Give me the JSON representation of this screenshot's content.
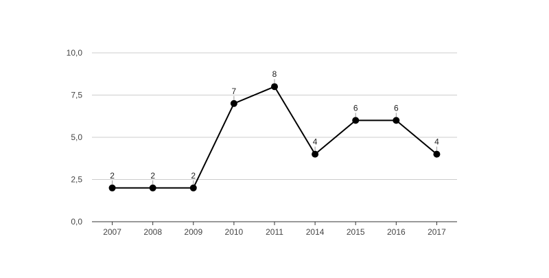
{
  "chart_data": {
    "type": "line",
    "categories": [
      "2007",
      "2008",
      "2009",
      "2010",
      "2011",
      "2014",
      "2015",
      "2016",
      "2017"
    ],
    "series": [
      {
        "values": [
          2,
          2,
          2,
          7,
          8,
          4,
          6,
          6,
          4
        ],
        "color": "#000000"
      }
    ],
    "data_labels": [
      "2",
      "2",
      "2",
      "7",
      "8",
      "4",
      "6",
      "6",
      "4"
    ],
    "y_ticks": [
      0,
      2.5,
      5,
      7.5,
      10
    ],
    "y_tick_labels": [
      "0,0",
      "2,5",
      "5,0",
      "7,5",
      "10,0"
    ],
    "ylim": [
      0,
      10
    ],
    "title": "",
    "xlabel": "",
    "ylabel": "",
    "grid": true,
    "legend": "none",
    "colors": {
      "line": "#000000",
      "grid": "#cccccc",
      "axis": "#333333",
      "tick_text": "#444444"
    }
  }
}
